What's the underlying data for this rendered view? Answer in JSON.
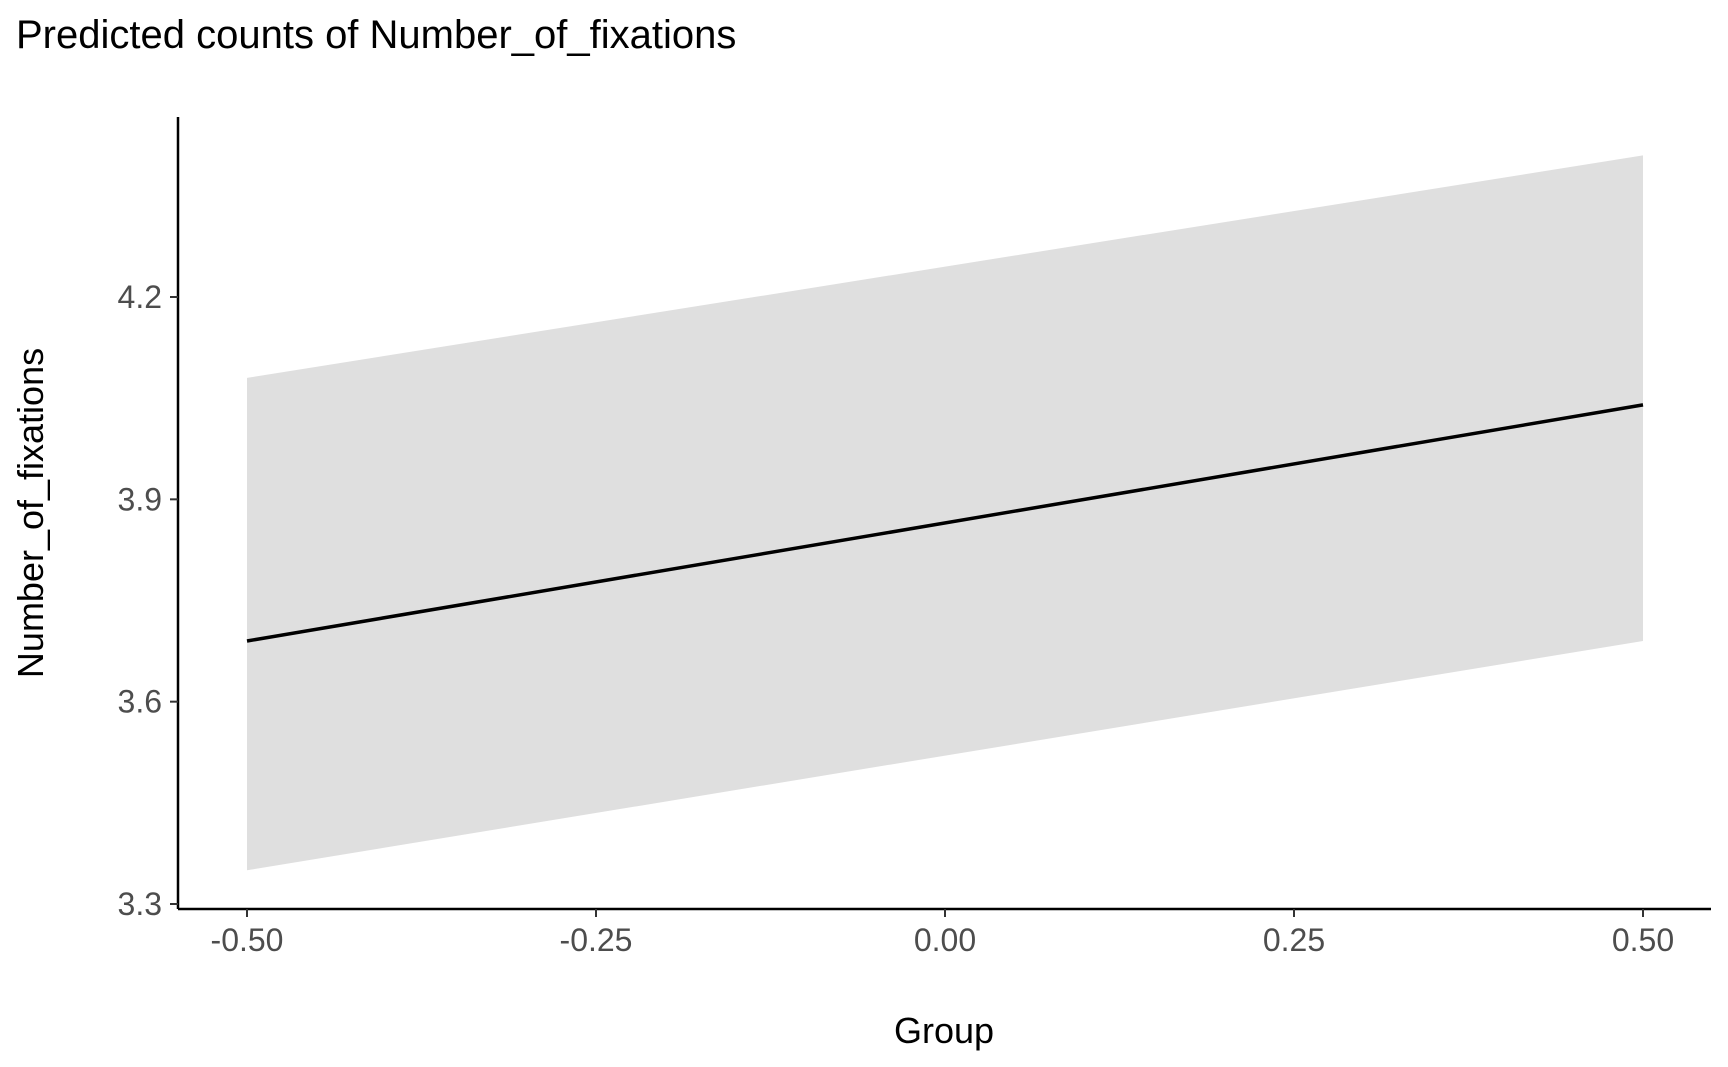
{
  "chart_data": {
    "type": "line",
    "title": "Predicted counts of Number_of_fixations",
    "xlabel": "Group",
    "ylabel": "Number_of_fixations",
    "xlim": [
      -0.5,
      0.5
    ],
    "ylim": [
      3.3,
      4.45
    ],
    "x_ticks": [
      -0.5,
      -0.25,
      0.0,
      0.25,
      0.5
    ],
    "x_tick_labels": [
      "-0.50",
      "-0.25",
      "0.00",
      "0.25",
      "0.50"
    ],
    "y_ticks": [
      3.3,
      3.6,
      3.9,
      4.2
    ],
    "y_tick_labels": [
      "3.3",
      "3.6",
      "3.9",
      "4.2"
    ],
    "grid": false,
    "legend": "none",
    "series": [
      {
        "x": [
          -0.5,
          0.5
        ],
        "y": [
          3.69,
          4.04
        ],
        "ci_lower": [
          3.35,
          3.69
        ],
        "ci_upper": [
          4.08,
          4.41
        ],
        "line_color": "#000000",
        "band_color": "#dfdfdf"
      }
    ]
  }
}
